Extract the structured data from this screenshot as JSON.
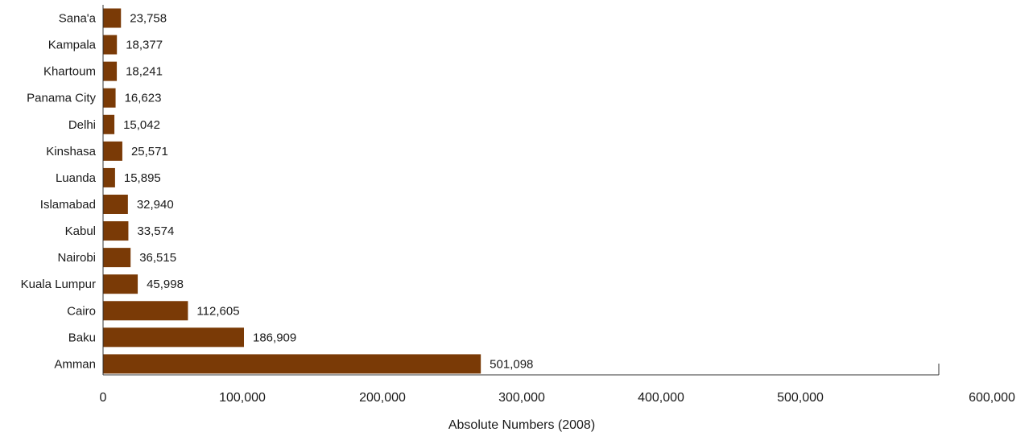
{
  "chart_data": {
    "type": "bar",
    "orientation": "horizontal",
    "categories": [
      "Sana'a",
      "Kampala",
      "Khartoum",
      "Panama City",
      "Delhi",
      "Kinshasa",
      "Luanda",
      "Islamabad",
      "Kabul",
      "Nairobi",
      "Kuala Lumpur",
      "Cairo",
      "Baku",
      "Amman"
    ],
    "values": [
      23758,
      18377,
      18241,
      16623,
      15042,
      25571,
      15895,
      32940,
      33574,
      36515,
      45998,
      112605,
      186909,
      501098
    ],
    "value_labels": [
      "23,758",
      "18,377",
      "18,241",
      "16,623",
      "15,042",
      "25,571",
      "15,895",
      "32,940",
      "33,574",
      "36,515",
      "45,998",
      "112,605",
      "186,909",
      "501,098"
    ],
    "xlabel": "Absolute Numbers (2008)",
    "xlim": [
      0,
      600000
    ],
    "xticks": [
      0,
      100000,
      200000,
      300000,
      400000,
      500000,
      600000
    ],
    "xtick_labels": [
      "0",
      "100,000",
      "200,000",
      "300,000",
      "400,000",
      "500,000",
      "600,000"
    ],
    "bar_color": "#7a3a06",
    "grid": false,
    "legend": "none"
  }
}
